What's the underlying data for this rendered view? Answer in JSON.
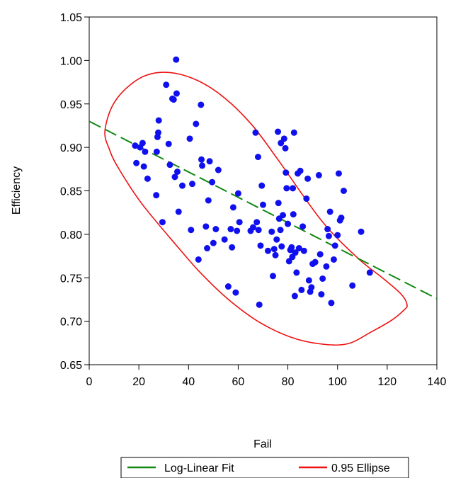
{
  "chart_data": {
    "type": "scatter",
    "xlabel": "Fail",
    "ylabel": "Efficiency",
    "xlim": [
      0,
      140
    ],
    "ylim": [
      0.65,
      1.05
    ],
    "x_ticks": [
      "0",
      "20",
      "40",
      "60",
      "80",
      "100",
      "120",
      "140"
    ],
    "y_ticks": [
      "0.65",
      "0.70",
      "0.75",
      "0.80",
      "0.85",
      "0.90",
      "0.95",
      "1.00",
      "1.05"
    ],
    "grid": false,
    "legend_position": "bottom",
    "colors": {
      "points": "#1010ee",
      "fit": "#118811",
      "ellipse": "#ee1111"
    },
    "series": [
      {
        "name": "",
        "kind": "points",
        "points": [
          [
            18.5,
            0.902
          ],
          [
            19,
            0.882
          ],
          [
            20.5,
            0.9
          ],
          [
            21.5,
            0.905
          ],
          [
            22,
            0.878
          ],
          [
            22.5,
            0.895
          ],
          [
            23.5,
            0.864
          ],
          [
            27,
            0.845
          ],
          [
            27.2,
            0.895
          ],
          [
            27.5,
            0.912
          ],
          [
            27.8,
            0.917
          ],
          [
            28,
            0.931
          ],
          [
            29.5,
            0.814
          ],
          [
            31,
            0.972
          ],
          [
            32,
            0.904
          ],
          [
            32.5,
            0.88
          ],
          [
            33.5,
            0.956
          ],
          [
            34,
            0.955
          ],
          [
            34.5,
            0.866
          ],
          [
            35,
            1.001
          ],
          [
            35.2,
            0.962
          ],
          [
            35.5,
            0.872
          ],
          [
            36,
            0.826
          ],
          [
            37.5,
            0.856
          ],
          [
            40.5,
            0.91
          ],
          [
            41,
            0.805
          ],
          [
            41.5,
            0.858
          ],
          [
            43,
            0.927
          ],
          [
            44,
            0.771
          ],
          [
            45,
            0.949
          ],
          [
            45.2,
            0.886
          ],
          [
            45.5,
            0.879
          ],
          [
            47,
            0.809
          ],
          [
            47.5,
            0.784
          ],
          [
            48,
            0.839
          ],
          [
            48.5,
            0.884
          ],
          [
            49.5,
            0.86
          ],
          [
            50,
            0.79
          ],
          [
            51,
            0.806
          ],
          [
            52,
            0.874
          ],
          [
            54.5,
            0.794
          ],
          [
            56,
            0.74
          ],
          [
            57,
            0.806
          ],
          [
            57.5,
            0.785
          ],
          [
            58,
            0.831
          ],
          [
            59,
            0.733
          ],
          [
            59.5,
            0.804
          ],
          [
            60,
            0.847
          ],
          [
            60.5,
            0.814
          ],
          [
            65,
            0.804
          ],
          [
            66,
            0.808
          ],
          [
            67,
            0.917
          ],
          [
            67.5,
            0.814
          ],
          [
            68,
            0.889
          ],
          [
            68.2,
            0.805
          ],
          [
            68.5,
            0.719
          ],
          [
            69,
            0.787
          ],
          [
            69.5,
            0.856
          ],
          [
            70,
            0.834
          ],
          [
            72,
            0.781
          ],
          [
            73.5,
            0.803
          ],
          [
            74,
            0.752
          ],
          [
            74.5,
            0.783
          ],
          [
            75,
            0.776
          ],
          [
            75.5,
            0.794
          ],
          [
            76,
            0.918
          ],
          [
            76.2,
            0.836
          ],
          [
            76.5,
            0.818
          ],
          [
            77,
            0.805
          ],
          [
            77.2,
            0.905
          ],
          [
            77.5,
            0.786
          ],
          [
            78,
            0.822
          ],
          [
            78.5,
            0.91
          ],
          [
            79,
            0.899
          ],
          [
            79.2,
            0.871
          ],
          [
            79.5,
            0.853
          ],
          [
            80,
            0.812
          ],
          [
            80.5,
            0.769
          ],
          [
            81,
            0.782
          ],
          [
            81.5,
            0.785
          ],
          [
            81.8,
            0.774
          ],
          [
            82,
            0.853
          ],
          [
            82.2,
            0.823
          ],
          [
            82.5,
            0.917
          ],
          [
            82.8,
            0.729
          ],
          [
            83,
            0.779
          ],
          [
            83.5,
            0.756
          ],
          [
            84,
            0.87
          ],
          [
            84.5,
            0.784
          ],
          [
            85,
            0.873
          ],
          [
            85.5,
            0.736
          ],
          [
            86,
            0.809
          ],
          [
            86.5,
            0.781
          ],
          [
            87.5,
            0.841
          ],
          [
            88,
            0.864
          ],
          [
            88.5,
            0.747
          ],
          [
            89,
            0.734
          ],
          [
            89.5,
            0.739
          ],
          [
            90,
            0.766
          ],
          [
            91,
            0.768
          ],
          [
            92.5,
            0.868
          ],
          [
            93,
            0.777
          ],
          [
            93.5,
            0.731
          ],
          [
            94,
            0.749
          ],
          [
            95.5,
            0.763
          ],
          [
            96,
            0.806
          ],
          [
            96.5,
            0.798
          ],
          [
            97,
            0.826
          ],
          [
            97.5,
            0.721
          ],
          [
            98.5,
            0.771
          ],
          [
            99,
            0.787
          ],
          [
            100,
            0.799
          ],
          [
            100.5,
            0.87
          ],
          [
            101,
            0.816
          ],
          [
            101.5,
            0.819
          ],
          [
            102.5,
            0.85
          ],
          [
            106,
            0.741
          ],
          [
            109.5,
            0.803
          ],
          [
            113,
            0.756
          ]
        ]
      },
      {
        "name": "Log-Linear Fit",
        "kind": "line",
        "style": "dashed",
        "points": [
          [
            0,
            0.93
          ],
          [
            140,
            0.726
          ]
        ]
      },
      {
        "name": "0.95 Ellipse",
        "kind": "ellipse",
        "points": [
          [
            6.3,
            0.918
          ],
          [
            9.2,
            0.947
          ],
          [
            14.9,
            0.968
          ],
          [
            23,
            0.983
          ],
          [
            32.8,
            0.986
          ],
          [
            43.6,
            0.977
          ],
          [
            54.5,
            0.957
          ],
          [
            65.5,
            0.926
          ],
          [
            76,
            0.886
          ],
          [
            93.5,
            0.816
          ],
          [
            108,
            0.773
          ],
          [
            118.5,
            0.749
          ],
          [
            125.7,
            0.731
          ],
          [
            128,
            0.719
          ],
          [
            126.8,
            0.713
          ],
          [
            121.7,
            0.701
          ],
          [
            113.7,
            0.688
          ],
          [
            104,
            0.674
          ],
          [
            92.8,
            0.674
          ],
          [
            80.9,
            0.682
          ],
          [
            68.5,
            0.699
          ],
          [
            56.5,
            0.724
          ],
          [
            45.4,
            0.754
          ],
          [
            35.5,
            0.786
          ],
          [
            21,
            0.836
          ],
          [
            11.6,
            0.877
          ],
          [
            8.1,
            0.898
          ]
        ]
      }
    ]
  },
  "legend": {
    "fit_label": "Log-Linear Fit",
    "ellipse_label": "0.95 Ellipse"
  }
}
